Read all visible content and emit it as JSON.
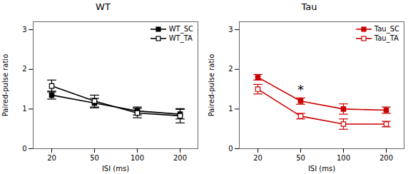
{
  "chart_data": [
    {
      "type": "line",
      "title": "WT",
      "xlabel": "ISI (ms)",
      "ylabel": "Paired-pulse ratio",
      "categories": [
        "20",
        "50",
        "100",
        "200"
      ],
      "series": [
        {
          "name": "WT_SC",
          "color": "#000000",
          "marker": "square",
          "line_style": "solid",
          "values": [
            1.35,
            1.15,
            0.95,
            0.87
          ],
          "errors": [
            0.1,
            0.12,
            0.1,
            0.12
          ]
        },
        {
          "name": "WT_TA",
          "color": "#000000",
          "marker": "open square",
          "line_style": "solid",
          "values": [
            1.58,
            1.2,
            0.9,
            0.83
          ],
          "errors": [
            0.15,
            0.15,
            0.12,
            0.18
          ]
        }
      ],
      "ylim": [
        0,
        3.2
      ],
      "yticks": [
        0,
        1,
        2,
        3
      ],
      "grid": false,
      "legend": "upper right"
    },
    {
      "type": "line",
      "title": "Tau",
      "xlabel": "ISI (ms)",
      "ylabel": "Paired-pulse ratio",
      "categories": [
        "20",
        "50",
        "100",
        "200"
      ],
      "series": [
        {
          "name": "Tau_SC",
          "color": "#cc0000",
          "marker": "square",
          "line_style": "solid",
          "values": [
            1.8,
            1.2,
            1.0,
            0.97
          ],
          "errors": [
            0.07,
            0.08,
            0.13,
            0.08
          ]
        },
        {
          "name": "Tau_TA",
          "color": "#cc0000",
          "marker": "open square",
          "line_style": "solid",
          "values": [
            1.5,
            0.82,
            0.62,
            0.62
          ],
          "errors": [
            0.12,
            0.07,
            0.13,
            0.07
          ]
        }
      ],
      "annotations": [
        {
          "text": "*",
          "x": "50",
          "y": 1.48
        }
      ],
      "ylim": [
        0,
        3.2
      ],
      "yticks": [
        0,
        1,
        2,
        3
      ],
      "grid": false,
      "legend": "upper right"
    }
  ]
}
